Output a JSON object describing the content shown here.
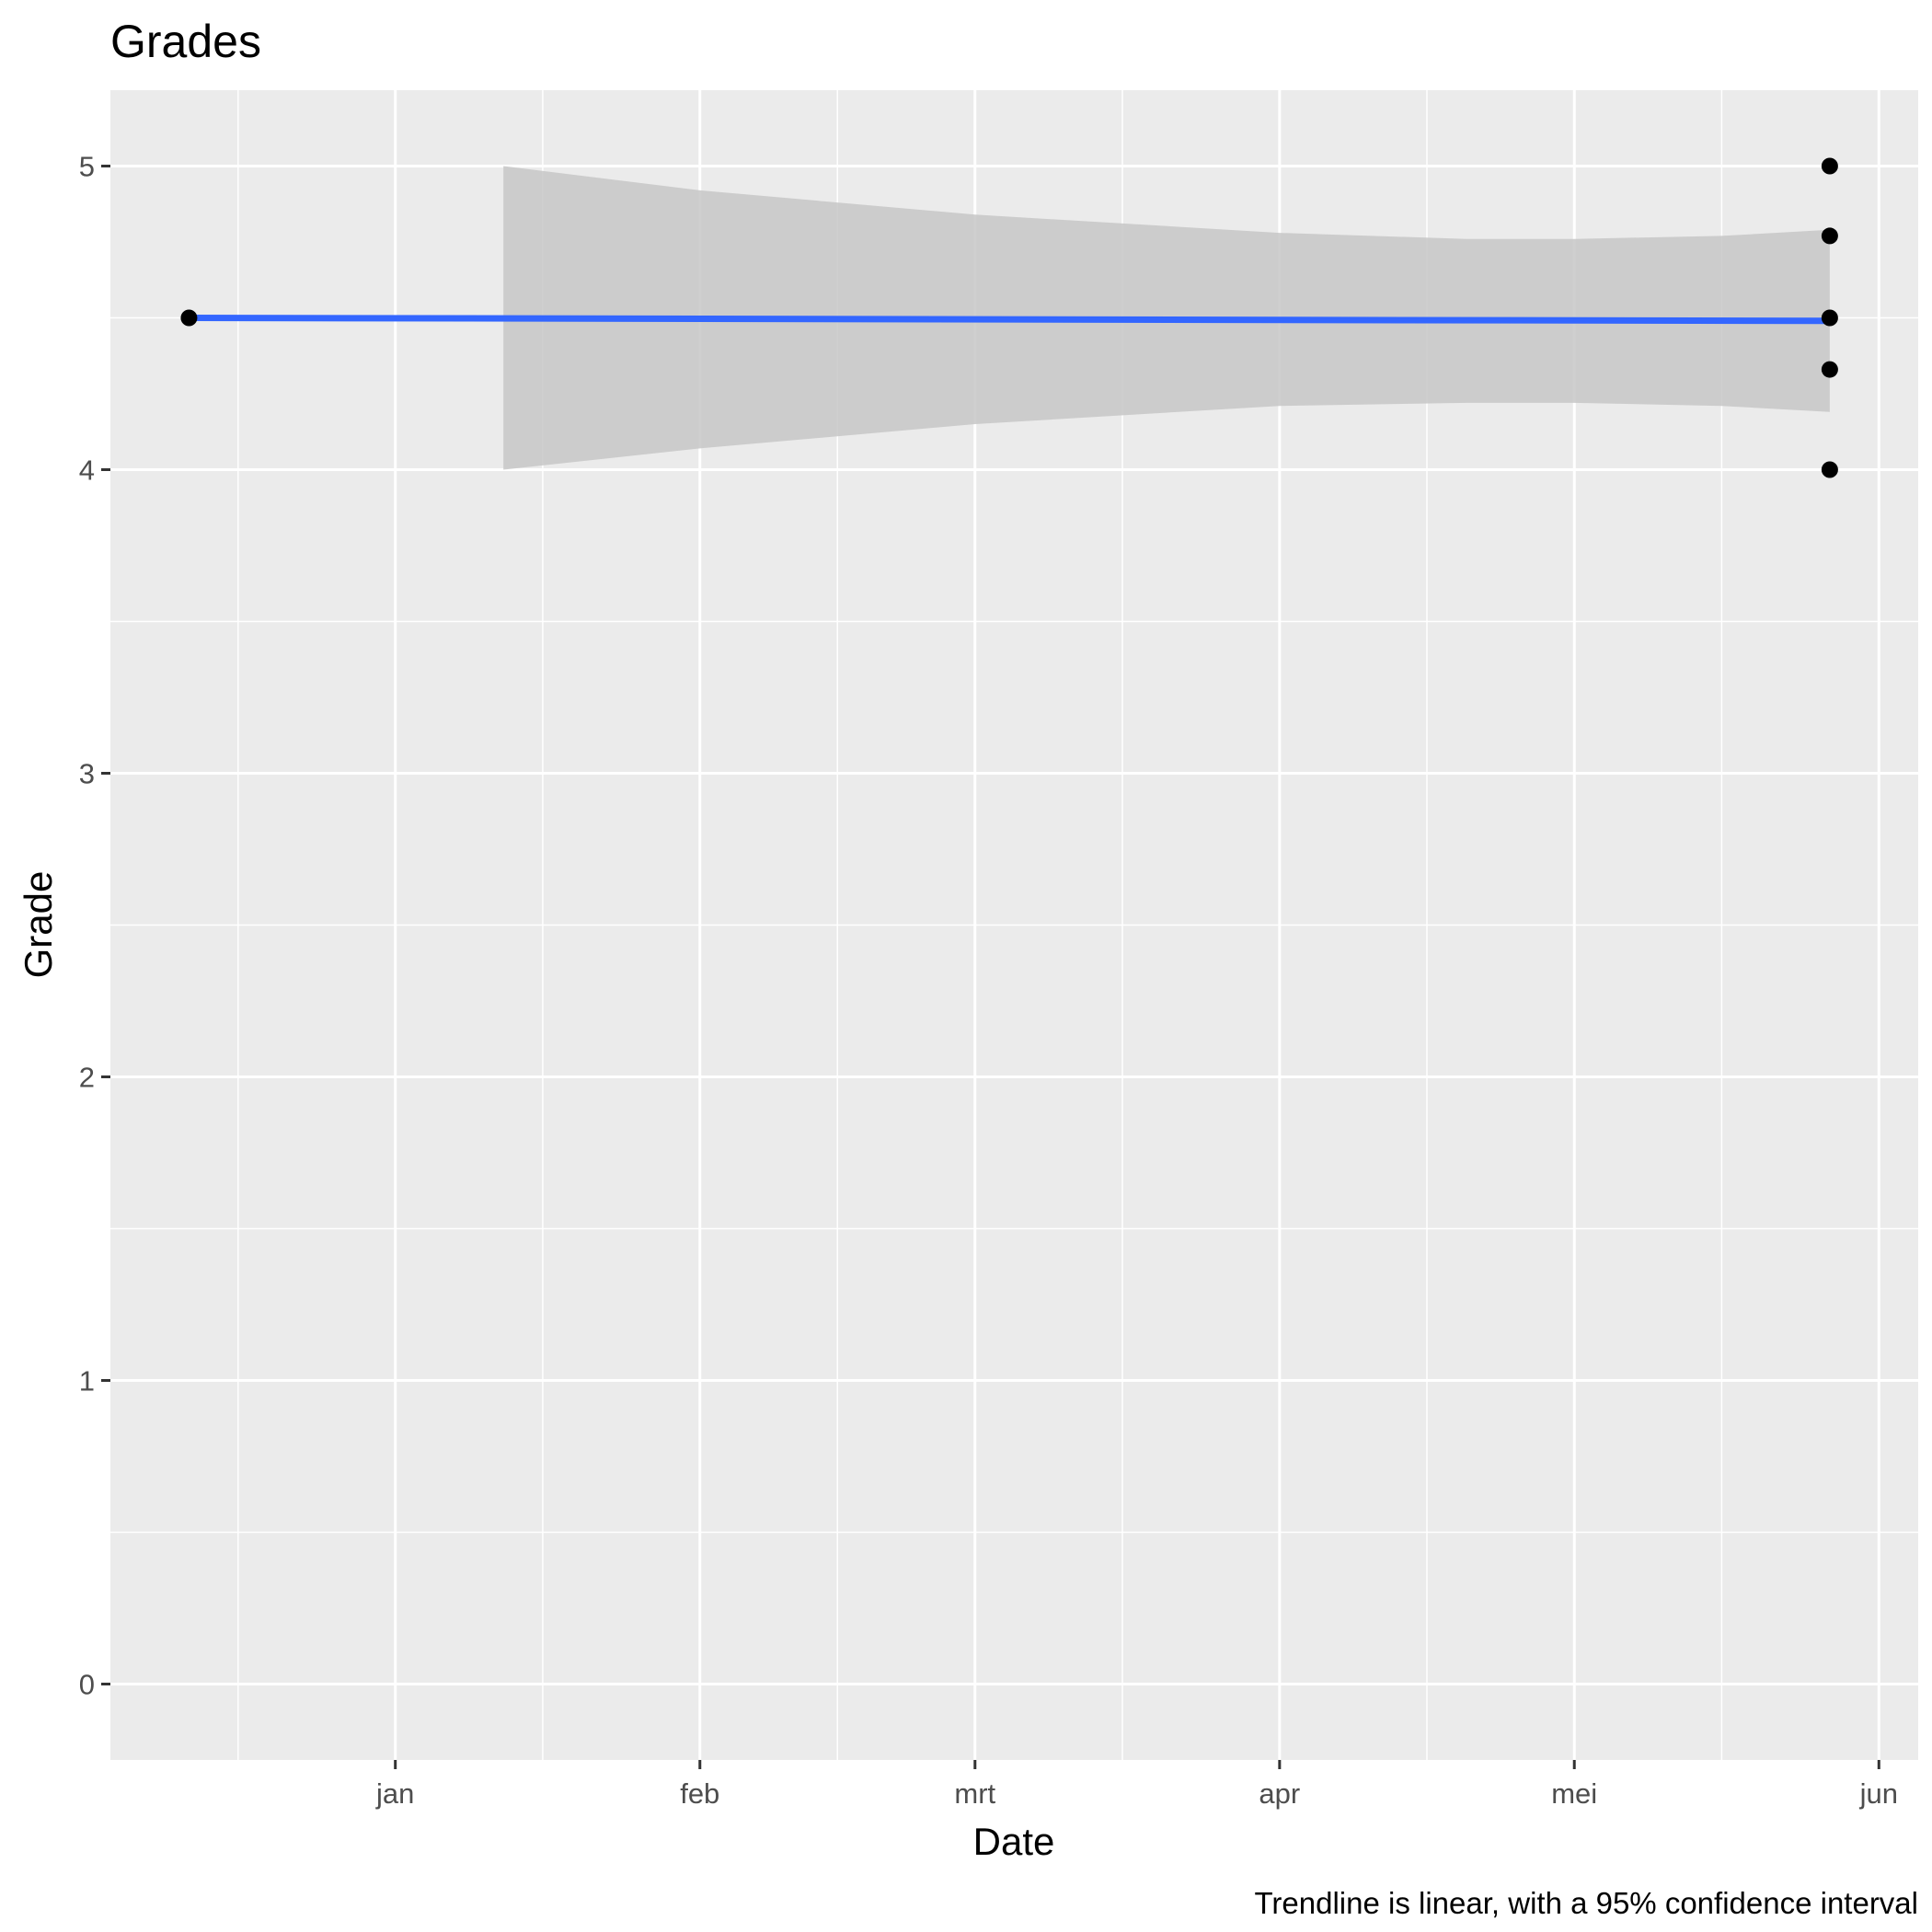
{
  "chart_data": {
    "type": "scatter",
    "title": "Grades",
    "xlabel": "Date",
    "ylabel": "Grade",
    "caption": "Trendline is linear, with a 95% confidence interval",
    "xlim": [
      "2017-12-03",
      "2018-06-05"
    ],
    "ylim": [
      -0.25,
      5.25
    ],
    "x_ticks": [
      {
        "date": "2018-01-01",
        "label": "jan"
      },
      {
        "date": "2018-02-01",
        "label": "feb"
      },
      {
        "date": "2018-03-01",
        "label": "mrt"
      },
      {
        "date": "2018-04-01",
        "label": "apr"
      },
      {
        "date": "2018-05-01",
        "label": "mei"
      },
      {
        "date": "2018-06-01",
        "label": "jun"
      }
    ],
    "x_minor_ticks": [
      "2017-12-16",
      "2018-01-16",
      "2018-02-15",
      "2018-03-16",
      "2018-04-16",
      "2018-05-16"
    ],
    "y_ticks": [
      0,
      1,
      2,
      3,
      4,
      5
    ],
    "y_minor_ticks": [
      0.5,
      1.5,
      2.5,
      3.5,
      4.5
    ],
    "points": [
      {
        "x": "2017-12-11",
        "y": 4.5
      },
      {
        "x": "2018-05-27",
        "y": 5.0
      },
      {
        "x": "2018-05-27",
        "y": 4.77
      },
      {
        "x": "2018-05-27",
        "y": 4.5
      },
      {
        "x": "2018-05-27",
        "y": 4.33
      },
      {
        "x": "2018-05-27",
        "y": 4.0
      }
    ],
    "trendline": {
      "method": "linear",
      "x": [
        "2017-12-11",
        "2018-05-27"
      ],
      "y": [
        4.5,
        4.49
      ]
    },
    "confidence_band": {
      "level": 0.95,
      "x": [
        "2018-01-12",
        "2018-02-01",
        "2018-03-01",
        "2018-04-01",
        "2018-04-20",
        "2018-05-01",
        "2018-05-16",
        "2018-05-27"
      ],
      "upper": [
        5.0,
        4.92,
        4.84,
        4.78,
        4.76,
        4.76,
        4.77,
        4.79
      ],
      "lower": [
        4.0,
        4.07,
        4.15,
        4.21,
        4.22,
        4.22,
        4.21,
        4.19
      ]
    },
    "grid": true,
    "legend": "none",
    "colors": {
      "panel": "#ebebeb",
      "grid": "#ffffff",
      "trendline": "#3366ff",
      "band": "#c7c7c7",
      "points": "#000000"
    }
  }
}
